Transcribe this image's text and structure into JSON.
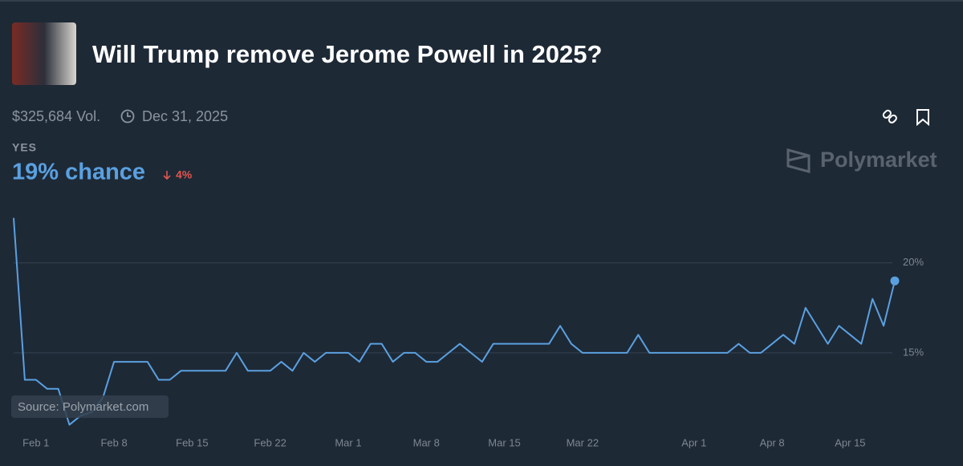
{
  "header": {
    "title": "Will Trump remove Jerome Powell in 2025?",
    "volume": "$325,684 Vol.",
    "end_date": "Dec 31, 2025"
  },
  "outcome": {
    "name": "YES",
    "chance": "19% chance",
    "change": "4%"
  },
  "brand": "Polymarket",
  "source": "Source: Polymarket.com",
  "chart_data": {
    "type": "line",
    "x": [
      "Jan 30",
      "Jan 31",
      "Feb 1",
      "Feb 2",
      "Feb 3",
      "Feb 4",
      "Feb 5",
      "Feb 6",
      "Feb 7",
      "Feb 8",
      "Feb 9",
      "Feb 10",
      "Feb 11",
      "Feb 12",
      "Feb 13",
      "Feb 14",
      "Feb 15",
      "Feb 16",
      "Feb 17",
      "Feb 18",
      "Feb 19",
      "Feb 20",
      "Feb 21",
      "Feb 22",
      "Feb 23",
      "Feb 24",
      "Feb 25",
      "Feb 26",
      "Feb 27",
      "Feb 28",
      "Mar 1",
      "Mar 2",
      "Mar 3",
      "Mar 4",
      "Mar 5",
      "Mar 6",
      "Mar 7",
      "Mar 8",
      "Mar 9",
      "Mar 10",
      "Mar 11",
      "Mar 12",
      "Mar 13",
      "Mar 14",
      "Mar 15",
      "Mar 16",
      "Mar 17",
      "Mar 18",
      "Mar 19",
      "Mar 20",
      "Mar 21",
      "Mar 22",
      "Mar 23",
      "Mar 24",
      "Mar 25",
      "Mar 26",
      "Mar 27",
      "Mar 28",
      "Mar 29",
      "Mar 30",
      "Mar 31",
      "Apr 1",
      "Apr 2",
      "Apr 3",
      "Apr 4",
      "Apr 5",
      "Apr 6",
      "Apr 7",
      "Apr 8",
      "Apr 9",
      "Apr 10",
      "Apr 11",
      "Apr 12",
      "Apr 13",
      "Apr 14",
      "Apr 15",
      "Apr 16",
      "Apr 17",
      "Apr 18",
      "Apr 19"
    ],
    "series": [
      {
        "name": "YES",
        "color": "#5aa0e0",
        "values": [
          22.5,
          13.5,
          13.5,
          13.0,
          13.0,
          11.0,
          11.5,
          11.7,
          12.5,
          14.5,
          14.5,
          14.5,
          14.5,
          13.5,
          13.5,
          14.0,
          14.0,
          14.0,
          14.0,
          14.0,
          15.0,
          14.0,
          14.0,
          14.0,
          14.5,
          14.0,
          15.0,
          14.5,
          15.0,
          15.0,
          15.0,
          14.5,
          15.5,
          15.5,
          14.5,
          15.0,
          15.0,
          14.5,
          14.5,
          15.0,
          15.5,
          15.0,
          14.5,
          15.5,
          15.5,
          15.5,
          15.5,
          15.5,
          15.5,
          16.5,
          15.5,
          15.0,
          15.0,
          15.0,
          15.0,
          15.0,
          16.0,
          15.0,
          15.0,
          15.0,
          15.0,
          15.0,
          15.0,
          15.0,
          15.0,
          15.5,
          15.0,
          15.0,
          15.5,
          16.0,
          15.5,
          17.5,
          16.5,
          15.5,
          16.5,
          16.0,
          15.5,
          18.0,
          16.5,
          19.0
        ]
      }
    ],
    "xticks": [
      "Feb 1",
      "Feb 8",
      "Feb 15",
      "Feb 22",
      "Mar 1",
      "Mar 8",
      "Mar 15",
      "Mar 22",
      "Apr 1",
      "Apr 8",
      "Apr 15"
    ],
    "ylim": [
      10.4,
      22.8
    ],
    "yticks": [
      {
        "value": 15,
        "label": "15%"
      },
      {
        "value": 20,
        "label": "20%"
      }
    ],
    "grid": true
  }
}
